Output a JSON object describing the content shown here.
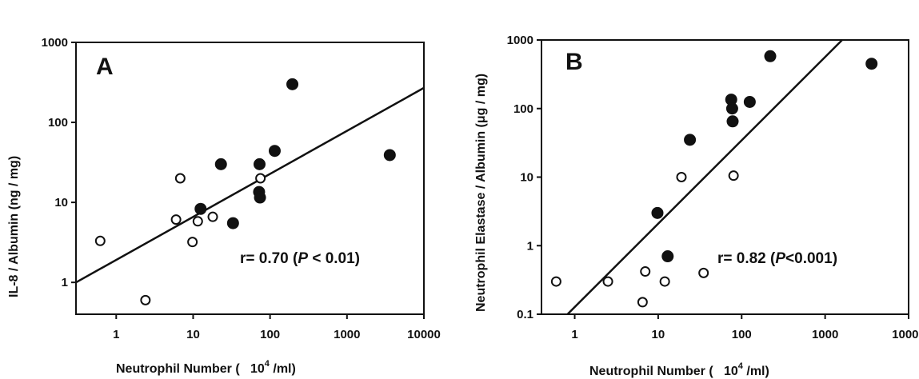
{
  "chart_data": [
    {
      "type": "scatter",
      "panel_label": "A",
      "xlabel": "Neutrophil Number (   10",
      "xlabel_sup": "4",
      "xlabel_tail": " /ml)",
      "ylabel": "IL-8  / Albumin (ng / mg)",
      "x_scale": "log",
      "y_scale": "log",
      "xlim": [
        0.3,
        10000
      ],
      "ylim": [
        0.4,
        1000
      ],
      "x_ticks": [
        "1",
        "10",
        "100",
        "1000",
        "10000"
      ],
      "x_tick_values": [
        1,
        10,
        100,
        1000,
        10000
      ],
      "y_ticks": [
        "1",
        "10",
        "100",
        "1000"
      ],
      "y_tick_values": [
        1,
        10,
        100,
        1000
      ],
      "annotation": {
        "prefix": "r= 0.70 (",
        "italic": "P",
        "suffix": " < 0.01)"
      },
      "fit_line": {
        "x": [
          0.3,
          10000
        ],
        "y": [
          1.0,
          270
        ]
      },
      "series": [
        {
          "marker": "open",
          "points": [
            {
              "x": 0.62,
              "y": 3.3
            },
            {
              "x": 2.4,
              "y": 0.6
            },
            {
              "x": 6.0,
              "y": 6.1
            },
            {
              "x": 6.8,
              "y": 20
            },
            {
              "x": 9.8,
              "y": 3.2
            },
            {
              "x": 11.5,
              "y": 5.8
            },
            {
              "x": 18,
              "y": 6.6
            },
            {
              "x": 75,
              "y": 20
            }
          ]
        },
        {
          "marker": "filled",
          "points": [
            {
              "x": 12.5,
              "y": 8.3
            },
            {
              "x": 23,
              "y": 30
            },
            {
              "x": 33,
              "y": 5.5
            },
            {
              "x": 73,
              "y": 30
            },
            {
              "x": 72,
              "y": 13.5
            },
            {
              "x": 74,
              "y": 11.5
            },
            {
              "x": 115,
              "y": 44
            },
            {
              "x": 195,
              "y": 300
            },
            {
              "x": 3600,
              "y": 39
            }
          ]
        }
      ]
    },
    {
      "type": "scatter",
      "panel_label": "B",
      "xlabel": "Neutrophil Number (   10",
      "xlabel_sup": "4",
      "xlabel_tail": " /ml)",
      "ylabel": "Neutrophil Elastase / Albumin (μg / mg)",
      "x_scale": "log",
      "y_scale": "log",
      "xlim": [
        0.4,
        10000
      ],
      "ylim": [
        0.1,
        1000
      ],
      "x_ticks": [
        "1",
        "10",
        "100",
        "1000",
        "10000"
      ],
      "x_tick_values": [
        1,
        10,
        100,
        1000,
        10000
      ],
      "y_ticks": [
        "0.1",
        "1",
        "10",
        "100",
        "1000"
      ],
      "y_tick_values": [
        0.1,
        1,
        10,
        100,
        1000
      ],
      "annotation": {
        "prefix": "r= 0.82 (",
        "italic": "P",
        "suffix": "<0.001)"
      },
      "fit_line": {
        "x": [
          0.82,
          1600
        ],
        "y": [
          0.1,
          1000
        ]
      },
      "series": [
        {
          "marker": "open",
          "points": [
            {
              "x": 0.6,
              "y": 0.3
            },
            {
              "x": 2.5,
              "y": 0.3
            },
            {
              "x": 6.5,
              "y": 0.15
            },
            {
              "x": 7.0,
              "y": 0.42
            },
            {
              "x": 12,
              "y": 0.3
            },
            {
              "x": 19,
              "y": 10
            },
            {
              "x": 35,
              "y": 0.4
            },
            {
              "x": 80,
              "y": 10.5
            }
          ]
        },
        {
          "marker": "filled",
          "points": [
            {
              "x": 9.8,
              "y": 3.0
            },
            {
              "x": 13,
              "y": 0.7
            },
            {
              "x": 24,
              "y": 35
            },
            {
              "x": 75,
              "y": 135
            },
            {
              "x": 77,
              "y": 100
            },
            {
              "x": 78,
              "y": 65
            },
            {
              "x": 125,
              "y": 125
            },
            {
              "x": 220,
              "y": 580
            },
            {
              "x": 3600,
              "y": 450
            }
          ]
        }
      ]
    }
  ]
}
